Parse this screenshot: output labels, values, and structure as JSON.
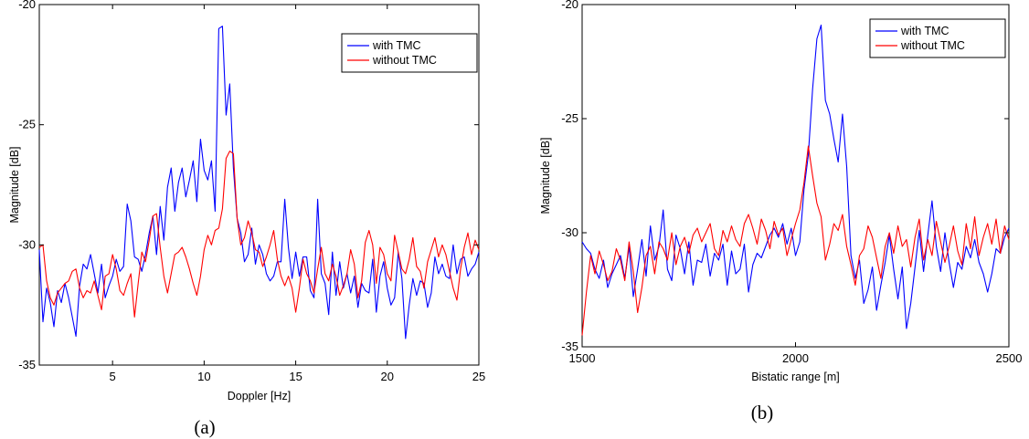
{
  "chart_data": [
    {
      "type": "line",
      "caption": "(a)",
      "xlabel": "Doppler [Hz]",
      "ylabel": "Magnitude [dB]",
      "xlim": [
        1,
        25
      ],
      "ylim": [
        -35,
        -20
      ],
      "xticks": [
        5,
        10,
        15,
        20,
        25
      ],
      "yticks": [
        -35,
        -30,
        -25,
        -20
      ],
      "grid": false,
      "legend": "top-right",
      "series": [
        {
          "name": "with TMC",
          "color": "#0000ff",
          "x": [
            1,
            1.2,
            1.4,
            1.6,
            1.8,
            2,
            2.2,
            2.4,
            2.6,
            2.8,
            3,
            3.2,
            3.4,
            3.6,
            3.8,
            4,
            4.2,
            4.4,
            4.6,
            4.8,
            5,
            5.2,
            5.4,
            5.6,
            5.8,
            6,
            6.2,
            6.4,
            6.6,
            6.8,
            7,
            7.2,
            7.4,
            7.6,
            7.8,
            8,
            8.2,
            8.4,
            8.6,
            8.8,
            9,
            9.2,
            9.4,
            9.6,
            9.8,
            10,
            10.2,
            10.4,
            10.6,
            10.8,
            11,
            11.2,
            11.4,
            11.6,
            11.8,
            12,
            12.2,
            12.4,
            12.6,
            12.8,
            13,
            13.2,
            13.4,
            13.6,
            13.8,
            14,
            14.2,
            14.4,
            14.6,
            14.8,
            15,
            15.2,
            15.4,
            15.6,
            15.8,
            16,
            16.2,
            16.4,
            16.6,
            16.8,
            17,
            17.2,
            17.4,
            17.6,
            17.8,
            18,
            18.2,
            18.4,
            18.6,
            18.8,
            19,
            19.2,
            19.4,
            19.6,
            19.8,
            20,
            20.2,
            20.4,
            20.6,
            20.8,
            21,
            21.2,
            21.4,
            21.6,
            21.8,
            22,
            22.2,
            22.4,
            22.6,
            22.8,
            23,
            23.2,
            23.4,
            23.6,
            23.8,
            24,
            24.2,
            24.4,
            24.6,
            24.8,
            25
          ],
          "y": [
            -30.2,
            -33.2,
            -31.8,
            -32.4,
            -33.4,
            -31.9,
            -32.4,
            -31.6,
            -32.2,
            -33.0,
            -33.8,
            -31.7,
            -30.8,
            -31.0,
            -30.4,
            -31.2,
            -32.0,
            -30.8,
            -32.2,
            -31.7,
            -31.3,
            -30.6,
            -31.1,
            -30.9,
            -28.3,
            -29.0,
            -30.5,
            -30.6,
            -31.1,
            -30.4,
            -29.5,
            -28.8,
            -30.4,
            -28.4,
            -29.8,
            -27.6,
            -26.8,
            -28.6,
            -27.4,
            -26.8,
            -28.0,
            -27.3,
            -26.5,
            -28.2,
            -25.6,
            -26.9,
            -27.3,
            -26.5,
            -28.6,
            -21.0,
            -20.9,
            -24.6,
            -23.3,
            -26.8,
            -28.9,
            -29.5,
            -30.7,
            -30.4,
            -29.3,
            -30.8,
            -30.0,
            -30.4,
            -31.2,
            -31.5,
            -31.3,
            -30.7,
            -30.7,
            -28.1,
            -30.1,
            -31.4,
            -30.3,
            -31.3,
            -30.5,
            -30.5,
            -31.9,
            -32.2,
            -28.1,
            -31.2,
            -31.6,
            -32.9,
            -30.3,
            -32.1,
            -30.7,
            -31.8,
            -31.2,
            -32.0,
            -31.3,
            -32.6,
            -31.6,
            -31.9,
            -32.0,
            -30.6,
            -32.8,
            -31.3,
            -30.7,
            -31.8,
            -32.5,
            -32.2,
            -30.3,
            -31.4,
            -33.9,
            -32.5,
            -31.4,
            -32.1,
            -31.5,
            -31.6,
            -32.6,
            -32.0,
            -30.5,
            -31.2,
            -30.8,
            -31.3,
            -31.4,
            -30.0,
            -31.2,
            -30.6,
            -30.5,
            -31.3,
            -31.0,
            -30.8,
            -30.3
          ]
        },
        {
          "name": "without TMC",
          "color": "#ff0000",
          "x": [
            1,
            1.2,
            1.4,
            1.6,
            1.8,
            2,
            2.2,
            2.4,
            2.6,
            2.8,
            3,
            3.2,
            3.4,
            3.6,
            3.8,
            4,
            4.2,
            4.4,
            4.6,
            4.8,
            5,
            5.2,
            5.4,
            5.6,
            5.8,
            6,
            6.2,
            6.4,
            6.6,
            6.8,
            7,
            7.2,
            7.4,
            7.6,
            7.8,
            8,
            8.2,
            8.4,
            8.6,
            8.8,
            9,
            9.2,
            9.4,
            9.6,
            9.8,
            10,
            10.2,
            10.4,
            10.6,
            10.8,
            11,
            11.2,
            11.4,
            11.6,
            11.8,
            12,
            12.2,
            12.4,
            12.6,
            12.8,
            13,
            13.2,
            13.4,
            13.6,
            13.8,
            14,
            14.2,
            14.4,
            14.6,
            14.8,
            15,
            15.2,
            15.4,
            15.6,
            15.8,
            16,
            16.2,
            16.4,
            16.6,
            16.8,
            17,
            17.2,
            17.4,
            17.6,
            17.8,
            18,
            18.2,
            18.4,
            18.6,
            18.8,
            19,
            19.2,
            19.4,
            19.6,
            19.8,
            20,
            20.2,
            20.4,
            20.6,
            20.8,
            21,
            21.2,
            21.4,
            21.6,
            21.8,
            22,
            22.2,
            22.4,
            22.6,
            22.8,
            23,
            23.2,
            23.4,
            23.6,
            23.8,
            24,
            24.2,
            24.4,
            24.6,
            24.8,
            25
          ],
          "y": [
            -30.1,
            -30.0,
            -31.5,
            -32.2,
            -32.5,
            -32.0,
            -31.8,
            -31.6,
            -31.5,
            -31.1,
            -31.0,
            -31.8,
            -32.2,
            -31.9,
            -32.0,
            -31.5,
            -32.1,
            -32.7,
            -31.3,
            -31.2,
            -30.4,
            -31.0,
            -31.9,
            -32.1,
            -31.6,
            -31.2,
            -33.0,
            -31.6,
            -30.3,
            -30.7,
            -29.8,
            -28.8,
            -28.7,
            -30.1,
            -31.3,
            -32.0,
            -31.2,
            -30.4,
            -30.3,
            -30.1,
            -30.5,
            -31.0,
            -31.6,
            -32.1,
            -31.3,
            -30.2,
            -29.6,
            -30.0,
            -29.4,
            -29.3,
            -28.5,
            -26.4,
            -26.1,
            -26.2,
            -28.9,
            -30.0,
            -29.7,
            -29.0,
            -29.5,
            -30.2,
            -30.3,
            -30.9,
            -30.5,
            -30.0,
            -29.4,
            -30.6,
            -31.3,
            -31.7,
            -31.3,
            -31.8,
            -32.8,
            -31.8,
            -30.6,
            -31.2,
            -31.5,
            -32.0,
            -31.0,
            -30.1,
            -31.2,
            -31.5,
            -30.8,
            -31.3,
            -32.1,
            -31.7,
            -31.2,
            -30.2,
            -30.8,
            -32.2,
            -31.5,
            -29.9,
            -29.4,
            -30.0,
            -31.6,
            -30.1,
            -30.4,
            -31.2,
            -31.5,
            -29.6,
            -30.3,
            -31.0,
            -31.2,
            -30.6,
            -29.7,
            -30.9,
            -31.1,
            -31.8,
            -30.7,
            -30.2,
            -29.7,
            -30.5,
            -30.0,
            -30.4,
            -31.1,
            -31.8,
            -32.3,
            -31.0,
            -30.1,
            -29.5,
            -30.4,
            -29.8,
            -30.2
          ]
        }
      ]
    },
    {
      "type": "line",
      "caption": "(b)",
      "xlabel": "Bistatic range [m]",
      "ylabel": "Magnitude [dB]",
      "xlim": [
        1500,
        2500
      ],
      "ylim": [
        -35,
        -20
      ],
      "xticks": [
        1500,
        2000,
        2500
      ],
      "yticks": [
        -35,
        -30,
        -25,
        -20
      ],
      "grid": false,
      "legend": "top-right",
      "series": [
        {
          "name": "with TMC",
          "color": "#0000ff",
          "x": [
            1500,
            1510,
            1520,
            1530,
            1540,
            1550,
            1560,
            1570,
            1580,
            1590,
            1600,
            1610,
            1620,
            1630,
            1640,
            1650,
            1660,
            1670,
            1680,
            1690,
            1700,
            1710,
            1720,
            1730,
            1740,
            1750,
            1760,
            1770,
            1780,
            1790,
            1800,
            1810,
            1820,
            1830,
            1840,
            1850,
            1860,
            1870,
            1880,
            1890,
            1900,
            1910,
            1920,
            1930,
            1940,
            1950,
            1960,
            1970,
            1980,
            1990,
            2000,
            2010,
            2020,
            2030,
            2040,
            2050,
            2060,
            2070,
            2080,
            2090,
            2100,
            2110,
            2120,
            2130,
            2140,
            2150,
            2160,
            2170,
            2180,
            2190,
            2200,
            2210,
            2220,
            2230,
            2240,
            2250,
            2260,
            2270,
            2280,
            2290,
            2300,
            2310,
            2320,
            2330,
            2340,
            2350,
            2360,
            2370,
            2380,
            2390,
            2400,
            2410,
            2420,
            2430,
            2440,
            2450,
            2460,
            2470,
            2480,
            2490,
            2500
          ],
          "y": [
            -30.4,
            -30.7,
            -30.9,
            -31.6,
            -32.0,
            -31.2,
            -32.4,
            -31.8,
            -31.4,
            -31.0,
            -32.0,
            -30.6,
            -32.8,
            -31.6,
            -30.3,
            -31.9,
            -29.7,
            -31.2,
            -30.6,
            -29.0,
            -31.6,
            -32.1,
            -30.1,
            -30.7,
            -31.8,
            -30.4,
            -32.3,
            -31.2,
            -31.3,
            -30.5,
            -31.9,
            -30.9,
            -31.2,
            -30.5,
            -32.3,
            -30.8,
            -31.8,
            -31.6,
            -30.5,
            -32.6,
            -31.4,
            -30.9,
            -31.1,
            -30.6,
            -30.1,
            -29.8,
            -30.2,
            -29.6,
            -30.5,
            -29.8,
            -31.0,
            -30.4,
            -28.1,
            -26.6,
            -23.7,
            -21.5,
            -20.9,
            -24.2,
            -24.8,
            -25.9,
            -26.9,
            -24.8,
            -27.1,
            -31.0,
            -32.0,
            -31.2,
            -33.1,
            -32.5,
            -31.5,
            -33.4,
            -32.3,
            -31.3,
            -30.1,
            -31.6,
            -32.9,
            -31.5,
            -34.2,
            -33.1,
            -31.5,
            -29.9,
            -31.7,
            -30.1,
            -28.6,
            -30.6,
            -31.7,
            -30.0,
            -31.3,
            -32.4,
            -31.3,
            -31.6,
            -30.6,
            -31.1,
            -30.3,
            -31.3,
            -31.8,
            -32.6,
            -31.8,
            -30.7,
            -30.9,
            -30.2,
            -29.8
          ]
        },
        {
          "name": "without TMC",
          "color": "#ff0000",
          "x": [
            1500,
            1510,
            1520,
            1530,
            1540,
            1550,
            1560,
            1570,
            1580,
            1590,
            1600,
            1610,
            1620,
            1630,
            1640,
            1650,
            1660,
            1670,
            1680,
            1690,
            1700,
            1710,
            1720,
            1730,
            1740,
            1750,
            1760,
            1770,
            1780,
            1790,
            1800,
            1810,
            1820,
            1830,
            1840,
            1850,
            1860,
            1870,
            1880,
            1890,
            1900,
            1910,
            1920,
            1930,
            1940,
            1950,
            1960,
            1970,
            1980,
            1990,
            2000,
            2010,
            2020,
            2030,
            2040,
            2050,
            2060,
            2070,
            2080,
            2090,
            2100,
            2110,
            2120,
            2130,
            2140,
            2150,
            2160,
            2170,
            2180,
            2190,
            2200,
            2210,
            2220,
            2230,
            2240,
            2250,
            2260,
            2270,
            2280,
            2290,
            2300,
            2310,
            2320,
            2330,
            2340,
            2350,
            2360,
            2370,
            2380,
            2390,
            2400,
            2410,
            2420,
            2430,
            2440,
            2450,
            2460,
            2470,
            2480,
            2490,
            2500
          ],
          "y": [
            -34.5,
            -32.6,
            -31.0,
            -31.8,
            -30.8,
            -31.4,
            -32.1,
            -31.7,
            -30.7,
            -31.2,
            -32.1,
            -30.4,
            -31.7,
            -33.5,
            -32.4,
            -31.0,
            -30.6,
            -31.8,
            -30.4,
            -30.7,
            -31.2,
            -30.0,
            -31.4,
            -30.6,
            -30.2,
            -30.9,
            -30.1,
            -29.8,
            -30.4,
            -30.0,
            -29.6,
            -30.7,
            -31.0,
            -29.9,
            -30.4,
            -29.7,
            -30.3,
            -30.6,
            -29.6,
            -29.2,
            -29.8,
            -30.5,
            -29.4,
            -29.9,
            -30.7,
            -29.5,
            -30.1,
            -29.8,
            -31.0,
            -30.3,
            -29.6,
            -29.0,
            -27.8,
            -26.2,
            -27.5,
            -28.7,
            -29.3,
            -31.2,
            -30.5,
            -29.6,
            -29.9,
            -29.2,
            -30.6,
            -31.4,
            -32.3,
            -31.0,
            -30.7,
            -29.7,
            -30.2,
            -31.1,
            -32.0,
            -30.6,
            -30.0,
            -30.9,
            -29.7,
            -30.6,
            -30.3,
            -31.5,
            -30.2,
            -29.4,
            -31.2,
            -30.3,
            -31.0,
            -29.5,
            -30.4,
            -31.3,
            -30.6,
            -29.7,
            -30.8,
            -31.4,
            -29.6,
            -30.7,
            -29.3,
            -31.0,
            -30.2,
            -29.6,
            -30.5,
            -29.4,
            -30.9,
            -29.7,
            -30.3
          ]
        }
      ]
    }
  ]
}
